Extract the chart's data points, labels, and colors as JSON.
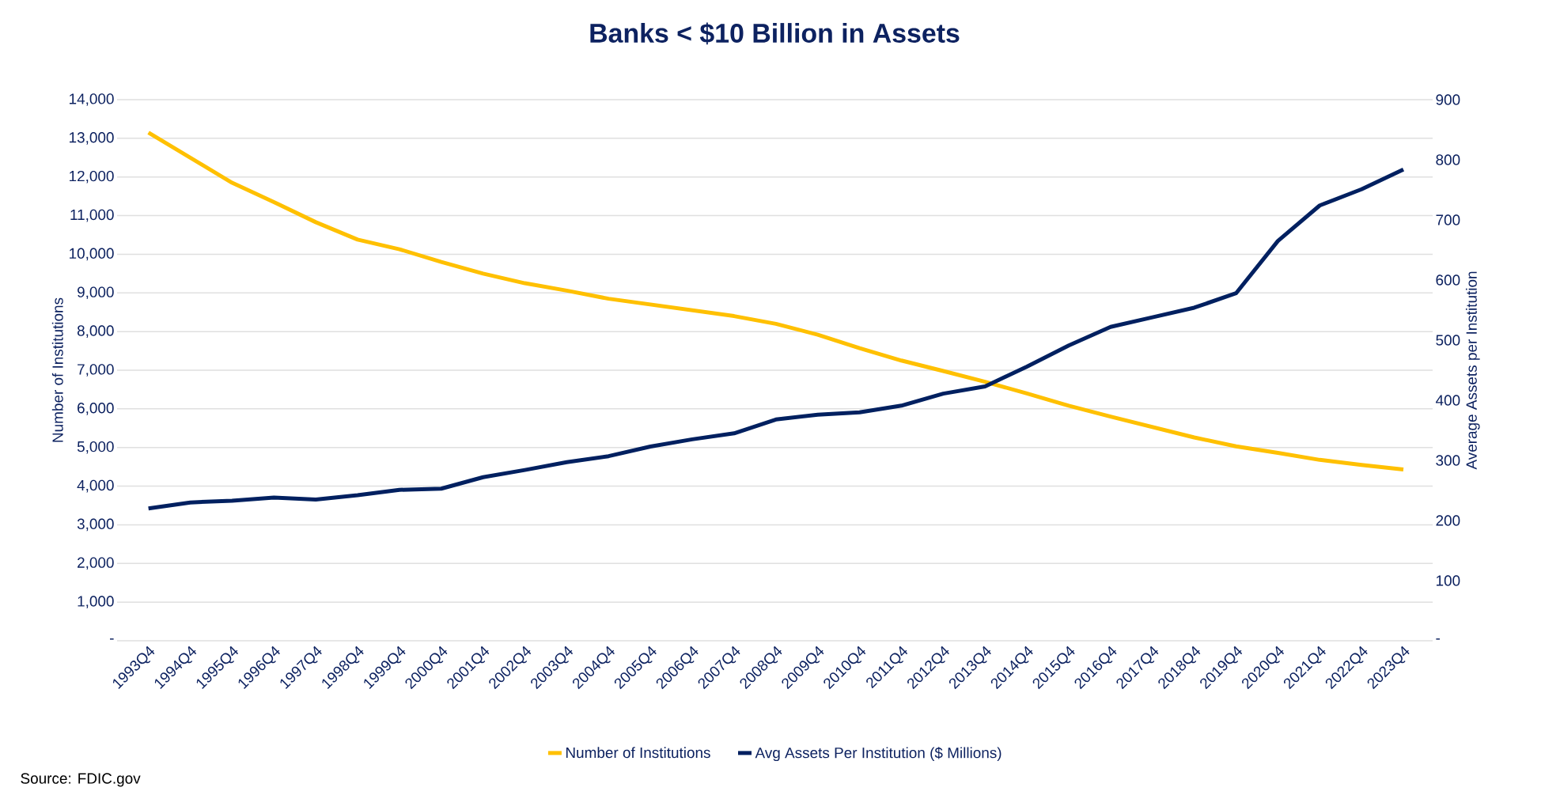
{
  "chart_data": {
    "type": "line",
    "title": "Banks < $10 Billion in Assets",
    "ylabel": "Number of Institutions",
    "y2label": "Average Assets per Institution",
    "categories": [
      "1993Q4",
      "1994Q4",
      "1995Q4",
      "1996Q4",
      "1997Q4",
      "1998Q4",
      "1999Q4",
      "2000Q4",
      "2001Q4",
      "2002Q4",
      "2003Q4",
      "2004Q4",
      "2005Q4",
      "2006Q4",
      "2007Q4",
      "2008Q4",
      "2009Q4",
      "2010Q4",
      "2011Q4",
      "2012Q4",
      "2013Q4",
      "2014Q4",
      "2015Q4",
      "2016Q4",
      "2017Q4",
      "2018Q4",
      "2019Q4",
      "2020Q4",
      "2021Q4",
      "2022Q4",
      "2023Q4"
    ],
    "series": [
      {
        "name": "Number of Institutions",
        "color": "#ffc000",
        "values": [
          13150,
          12500,
          11850,
          11350,
          10830,
          10380,
          10130,
          9800,
          9500,
          9250,
          9060,
          8850,
          8700,
          8550,
          8400,
          8200,
          7920,
          7570,
          7250,
          6980,
          6700,
          6400,
          6080,
          5800,
          5530,
          5260,
          5030,
          4860,
          4680,
          4550,
          4430
        ]
      },
      {
        "name": "Avg Assets Per Institution ($ Millions)",
        "color": "#002060",
        "axis": "y2",
        "values": [
          220,
          230,
          233,
          238,
          235,
          242,
          251,
          253,
          272,
          284,
          297,
          307,
          323,
          335,
          345,
          368,
          376,
          380,
          391,
          411,
          423,
          456,
          491,
          522,
          538,
          554,
          578,
          665,
          724,
          751,
          784
        ]
      }
    ],
    "ylim": [
      0,
      14000
    ],
    "yticks": [
      {
        "value": 0,
        "label": "-"
      },
      {
        "value": 1000,
        "label": "1,000"
      },
      {
        "value": 2000,
        "label": "2,000"
      },
      {
        "value": 3000,
        "label": "3,000"
      },
      {
        "value": 4000,
        "label": "4,000"
      },
      {
        "value": 5000,
        "label": "5,000"
      },
      {
        "value": 6000,
        "label": "6,000"
      },
      {
        "value": 7000,
        "label": "7,000"
      },
      {
        "value": 8000,
        "label": "8,000"
      },
      {
        "value": 9000,
        "label": "9,000"
      },
      {
        "value": 10000,
        "label": "10,000"
      },
      {
        "value": 11000,
        "label": "11,000"
      },
      {
        "value": 12000,
        "label": "12,000"
      },
      {
        "value": 13000,
        "label": "13,000"
      },
      {
        "value": 14000,
        "label": "14,000"
      }
    ],
    "y2lim": [
      0,
      900
    ],
    "y2ticks": [
      {
        "value": 0,
        "label": "-"
      },
      100,
      200,
      300,
      400,
      500,
      600,
      700,
      800,
      900
    ],
    "grid": "y",
    "legend": "bottom",
    "line_style": "solid",
    "marker": "none",
    "annotations": [
      "Source: FDIC.gov"
    ]
  }
}
